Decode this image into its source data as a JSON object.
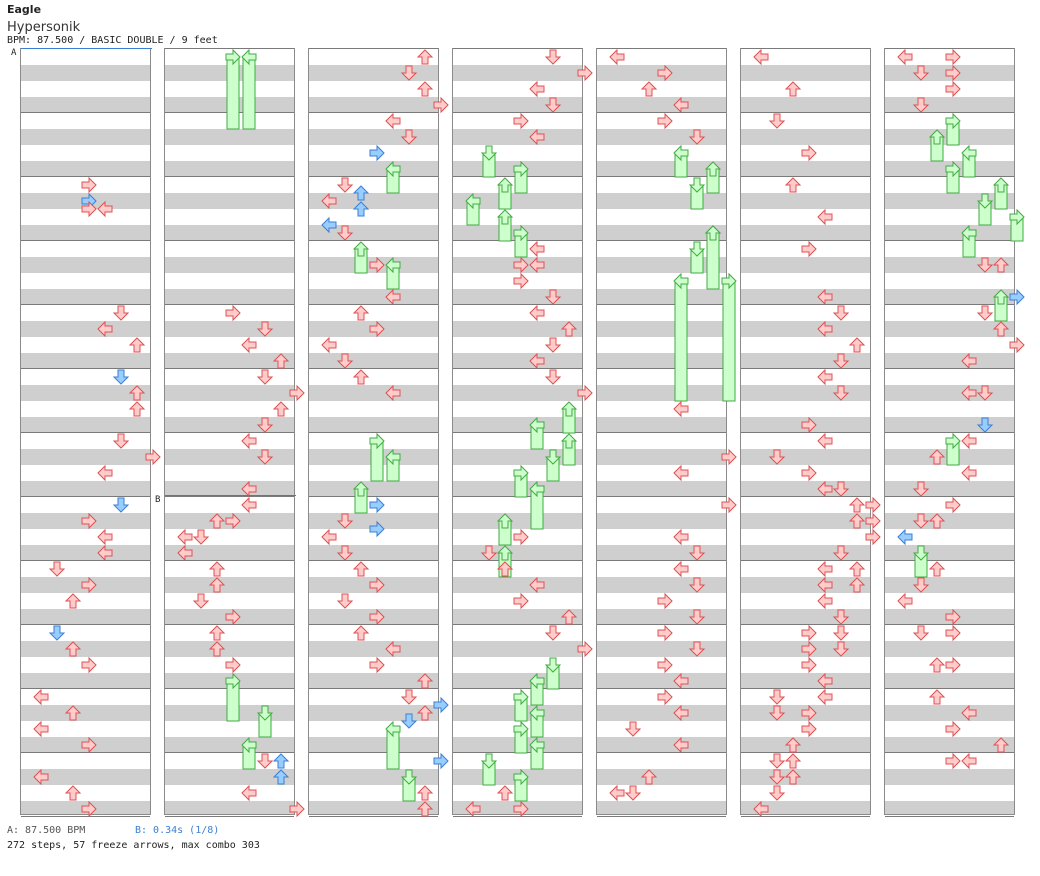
{
  "header": {
    "song_title": "Eagle",
    "song_name": "Hypersonik",
    "chart_info": "BPM: 87.500 / BASIC DOUBLE / 9 feet"
  },
  "markers": {
    "a": "A",
    "b": "B"
  },
  "footer": {
    "bpm_legend": "A: 87.500 BPM",
    "offset_legend": "B: 0.34s (1/8)",
    "stats": "272 steps, 57 freeze arrows, max combo 303"
  },
  "colors": {
    "arrow_fill": "#ffcccc",
    "arrow_stroke": "#e05050",
    "shock_fill": "#99ccff",
    "shock_stroke": "#3a7fd6",
    "freeze_fill": "#ccffcc",
    "freeze_stroke": "#44aa44",
    "bpm_line": "#3a7fd6"
  },
  "lanes": [
    "left",
    "down",
    "up",
    "right",
    "left",
    "down",
    "up",
    "right"
  ]
}
